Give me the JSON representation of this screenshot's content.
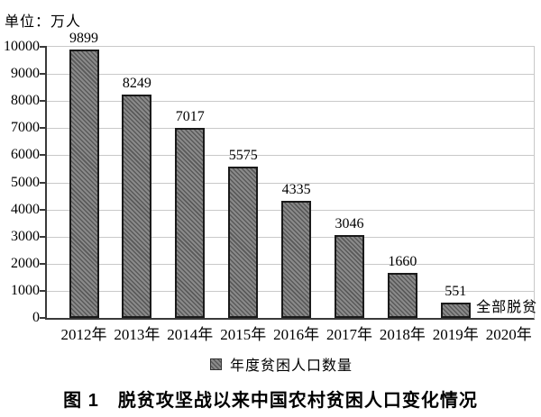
{
  "chart_data": {
    "type": "bar",
    "title": "",
    "unit_label": "单位：万人",
    "categories": [
      "2012年",
      "2013年",
      "2014年",
      "2015年",
      "2016年",
      "2017年",
      "2018年",
      "2019年",
      "2020年"
    ],
    "values": [
      9899,
      8249,
      7017,
      5575,
      4335,
      3046,
      1660,
      551,
      null
    ],
    "bar_value_labels": [
      "9899",
      "8249",
      "7017",
      "5575",
      "4335",
      "3046",
      "1660",
      "551"
    ],
    "annotation": {
      "category": "2020年",
      "text": "全部脱贫"
    },
    "legend_label": "年度贫困人口数量",
    "legend_position": "bottom",
    "xlabel": "",
    "ylabel": "",
    "ylim": [
      0,
      10000
    ],
    "ytick_step": 1000,
    "ytick_labels": [
      "0",
      "1000",
      "2000",
      "3000",
      "4000",
      "5000",
      "6000",
      "7000",
      "8000",
      "9000",
      "10000"
    ],
    "grid": true
  },
  "caption": {
    "text": "图 1　脱贫攻坚战以来中国农村贫困人口变化情况"
  },
  "colors": {
    "axis": "#3a3a3a",
    "gridline": "#c9c9c9",
    "bar_fill": "#8a8a8a",
    "bar_hatch": "#595959",
    "bar_border": "#1a1a1a",
    "text": "#000000",
    "background": "#ffffff"
  }
}
